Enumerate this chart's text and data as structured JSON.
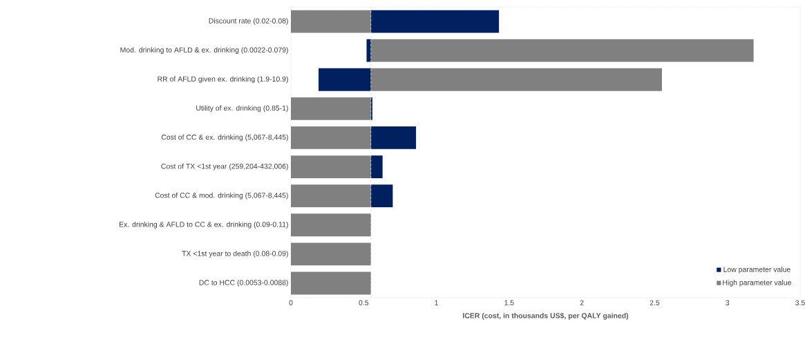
{
  "chart_data": {
    "type": "bar",
    "orientation": "horizontal",
    "categories": [
      "Discount rate (0.02-0.08)",
      "Mod. drinking to AFLD & ex. drinking (0.0022-0.079)",
      "RR of AFLD given ex. drinking (1.9-10.9)",
      "Utility of ex. drinking (0.85-1)",
      "Cost of CC & ex. drinking (5,067-8,445)",
      "Cost of TX <1st year (259,204-432,006)",
      "Cost of CC & mod. drinking (5,067-8,445)",
      "Ex. drinking & AFLD to CC & ex. drinking (0.09-0.11)",
      "TX <1st year to death (0.08-0.09)",
      "DC to HCC (0.0053-0.0088)"
    ],
    "series": [
      {
        "name": "Low parameter value",
        "color": "#002060",
        "base": [
          0.55,
          0.52,
          0.19,
          0.55,
          0.55,
          0.55,
          0.55,
          null,
          null,
          null
        ],
        "values": [
          0.88,
          0.03,
          0.36,
          0.01,
          0.31,
          0.08,
          0.15,
          null,
          null,
          null
        ]
      },
      {
        "name": "High parameter value",
        "color": "#808080",
        "base": [
          0,
          0.55,
          0.55,
          0,
          0,
          0,
          0,
          0,
          0,
          0
        ],
        "values": [
          0.55,
          2.63,
          2.0,
          0.55,
          0.55,
          0.55,
          0.55,
          0.55,
          0.55,
          0.55
        ]
      }
    ],
    "xlabel": "ICER (cost, in thousands US$, per QALY gained)",
    "xlim": [
      0,
      3.5
    ],
    "xticks": [
      0,
      0.5,
      1,
      1.5,
      2,
      2.5,
      3,
      3.5
    ],
    "ref_lines": [
      {
        "axis": "x",
        "value": 0.55,
        "color": "#d9d9d9",
        "line_style": "dashed"
      }
    ],
    "grid": false,
    "legend": "bottom right"
  }
}
